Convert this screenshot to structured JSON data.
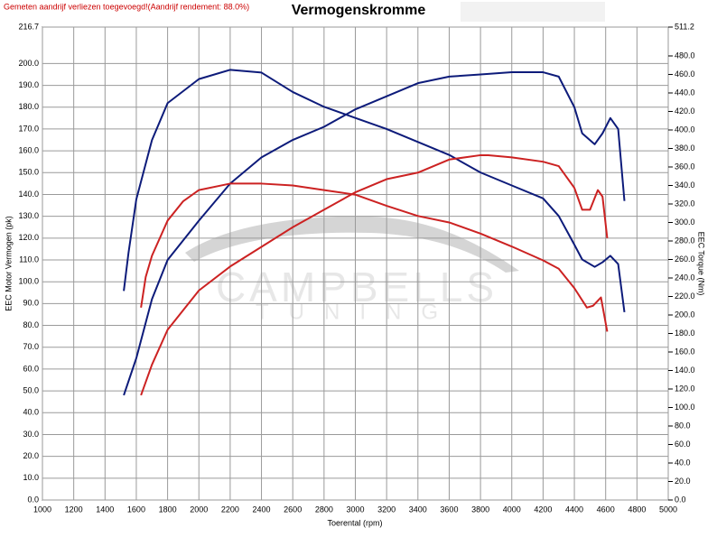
{
  "chart_data": {
    "type": "line",
    "title": "Vermogenskromme",
    "note": "Gemeten aandrijf verliezen toegevoegd!(Aandrijf rendement: 88.0%)",
    "watermark": [
      "CAMPBELLS",
      "TUNING"
    ],
    "xlabel": "Toerental (rpm)",
    "ylabel": "EEC Motor Vermogen (pk)",
    "y2label": "EEC Torque (Nm)",
    "grid": true,
    "xlim": [
      1000,
      5000
    ],
    "xticks": [
      1000,
      1200,
      1400,
      1600,
      1800,
      2000,
      2200,
      2400,
      2600,
      2800,
      3000,
      3200,
      3400,
      3600,
      3800,
      4000,
      4200,
      4400,
      4600,
      4800,
      5000
    ],
    "ylim": [
      0,
      216.7
    ],
    "yticks": [
      {
        "value": 0,
        "label": "0.0"
      },
      {
        "value": 10,
        "label": "10.0"
      },
      {
        "value": 20,
        "label": "20.0"
      },
      {
        "value": 30,
        "label": "30.0"
      },
      {
        "value": 40,
        "label": "40.0"
      },
      {
        "value": 50,
        "label": "50.0"
      },
      {
        "value": 60,
        "label": "60.0"
      },
      {
        "value": 70,
        "label": "70.0"
      },
      {
        "value": 80,
        "label": "80.0"
      },
      {
        "value": 90,
        "label": "90.0"
      },
      {
        "value": 100,
        "label": "100.0"
      },
      {
        "value": 110,
        "label": "110.0"
      },
      {
        "value": 120,
        "label": "120.0"
      },
      {
        "value": 130,
        "label": "130.0"
      },
      {
        "value": 140,
        "label": "140.0"
      },
      {
        "value": 150,
        "label": "150.0"
      },
      {
        "value": 160,
        "label": "160.0"
      },
      {
        "value": 170,
        "label": "170.0"
      },
      {
        "value": 180,
        "label": "180.0"
      },
      {
        "value": 190,
        "label": "190.0"
      },
      {
        "value": 200,
        "label": "200.0"
      },
      {
        "value": 216.7,
        "label": "216.7"
      }
    ],
    "y2lim": [
      0,
      511.2
    ],
    "y2ticks": [
      {
        "value": 0,
        "label": "0.0"
      },
      {
        "value": 20,
        "label": "20.0"
      },
      {
        "value": 40,
        "label": "40.0"
      },
      {
        "value": 60,
        "label": "60.0"
      },
      {
        "value": 80,
        "label": "80.0"
      },
      {
        "value": 100,
        "label": "100.0"
      },
      {
        "value": 120,
        "label": "120.0"
      },
      {
        "value": 140,
        "label": "140.0"
      },
      {
        "value": 160,
        "label": "160.0"
      },
      {
        "value": 180,
        "label": "180.0"
      },
      {
        "value": 200,
        "label": "200.0"
      },
      {
        "value": 220,
        "label": "220.0"
      },
      {
        "value": 240,
        "label": "240.0"
      },
      {
        "value": 260,
        "label": "260.0"
      },
      {
        "value": 280,
        "label": "280.0"
      },
      {
        "value": 300,
        "label": "300.0"
      },
      {
        "value": 320,
        "label": "320.0"
      },
      {
        "value": 340,
        "label": "340.0"
      },
      {
        "value": 360,
        "label": "360.0"
      },
      {
        "value": 380,
        "label": "380.0"
      },
      {
        "value": 400,
        "label": "400.0"
      },
      {
        "value": 420,
        "label": "420.0"
      },
      {
        "value": 440,
        "label": "440.0"
      },
      {
        "value": 460,
        "label": "460.0"
      },
      {
        "value": 480,
        "label": "480.0"
      },
      {
        "value": 511.2,
        "label": "511.2"
      }
    ],
    "series": [
      {
        "color": "#0d1b7a",
        "axis": "y",
        "x": [
          1520,
          1600,
          1700,
          1800,
          2000,
          2200,
          2400,
          2600,
          2800,
          3000,
          3200,
          3400,
          3600,
          3800,
          4000,
          4200,
          4300,
          4400,
          4450,
          4530,
          4580,
          4630,
          4680,
          4720
        ],
        "values": [
          48,
          65,
          92,
          110,
          128,
          145,
          157,
          165,
          171,
          179,
          185,
          191,
          194,
          195,
          196,
          196,
          194,
          180,
          168,
          163,
          168,
          175,
          170,
          137
        ]
      },
      {
        "color": "#0d1b7a",
        "axis": "y2",
        "x": [
          1520,
          1550,
          1600,
          1700,
          1800,
          2000,
          2200,
          2400,
          2600,
          2800,
          3000,
          3200,
          3400,
          3600,
          3800,
          4000,
          4200,
          4300,
          4400,
          4450,
          4530,
          4580,
          4630,
          4680,
          4720
        ],
        "values": [
          226,
          267,
          325,
          389,
          429,
          455,
          465,
          462,
          441,
          425,
          413,
          401,
          387,
          373,
          354,
          340,
          326,
          307,
          276,
          260,
          252,
          257,
          264,
          255,
          203
        ]
      },
      {
        "color": "#cc2222",
        "axis": "y",
        "x": [
          1630,
          1700,
          1800,
          2000,
          2200,
          2400,
          2600,
          2800,
          3000,
          3200,
          3400,
          3600,
          3800,
          3850,
          4000,
          4200,
          4300,
          4400,
          4450,
          4500,
          4550,
          4580,
          4610
        ],
        "values": [
          48,
          62,
          78,
          96,
          107,
          116,
          125,
          133,
          141,
          147,
          150,
          156,
          158,
          158,
          157,
          155,
          153,
          143,
          133,
          133,
          142,
          139,
          120
        ]
      },
      {
        "color": "#cc2222",
        "axis": "y2",
        "x": [
          1630,
          1660,
          1700,
          1800,
          1900,
          2000,
          2200,
          2400,
          2600,
          2800,
          3000,
          3200,
          3400,
          3600,
          3800,
          4000,
          4200,
          4300,
          4400,
          4480,
          4520,
          4570,
          4610
        ],
        "values": [
          208,
          241,
          264,
          302,
          323,
          335,
          342,
          342,
          340,
          335,
          330,
          318,
          307,
          300,
          288,
          274,
          259,
          250,
          229,
          208,
          210,
          219,
          182
        ]
      }
    ]
  }
}
